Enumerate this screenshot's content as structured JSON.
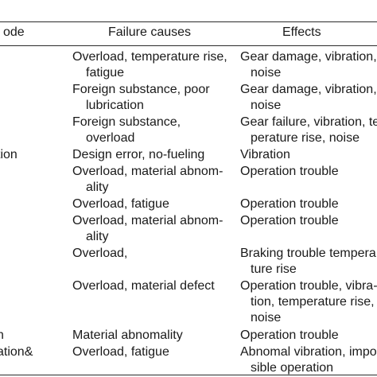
{
  "headers": {
    "mode": "ode",
    "causes": "Failure causes",
    "effects": "Effects"
  },
  "modes": {
    "m4": "tion",
    "m10": "n",
    "m11": "ation&"
  },
  "rows": [
    {
      "cause": [
        "Overload, temperature rise,",
        "fatigue"
      ],
      "effect": [
        "Gear damage, vibration,",
        "noise"
      ]
    },
    {
      "cause": [
        "Foreign substance, poor",
        "lubrication"
      ],
      "effect": [
        "Gear damage, vibration,",
        "noise"
      ]
    },
    {
      "cause": [
        "Foreign substance,",
        "overload"
      ],
      "effect": [
        "Gear failure, vibration, te",
        "perature rise, noise"
      ]
    },
    {
      "cause": [
        "Design error, no-fueling"
      ],
      "effect": [
        "Vibration"
      ]
    },
    {
      "cause": [
        "Overload, material abnom-",
        "ality"
      ],
      "effect": [
        "Operation trouble"
      ]
    },
    {
      "cause": [
        "Overload, fatigue"
      ],
      "effect": [
        "Operation trouble"
      ]
    },
    {
      "cause": [
        "Overload, material abnom-",
        "ality"
      ],
      "effect": [
        "Operation trouble"
      ]
    },
    {
      "cause": [
        "Overload,"
      ],
      "effect": [
        "Braking trouble tempera",
        "ture rise"
      ]
    },
    {
      "cause": [
        "Overload, material defect"
      ],
      "effect": [
        "Operation trouble, vibra-",
        "tion, temperature rise,",
        "noise"
      ]
    },
    {
      "cause": [
        "Material abnomality"
      ],
      "effect": [
        "Operation trouble"
      ]
    },
    {
      "cause": [
        "Overload, fatigue"
      ],
      "effect": [
        "Abnomal vibration, impo",
        "sible operation"
      ]
    }
  ]
}
